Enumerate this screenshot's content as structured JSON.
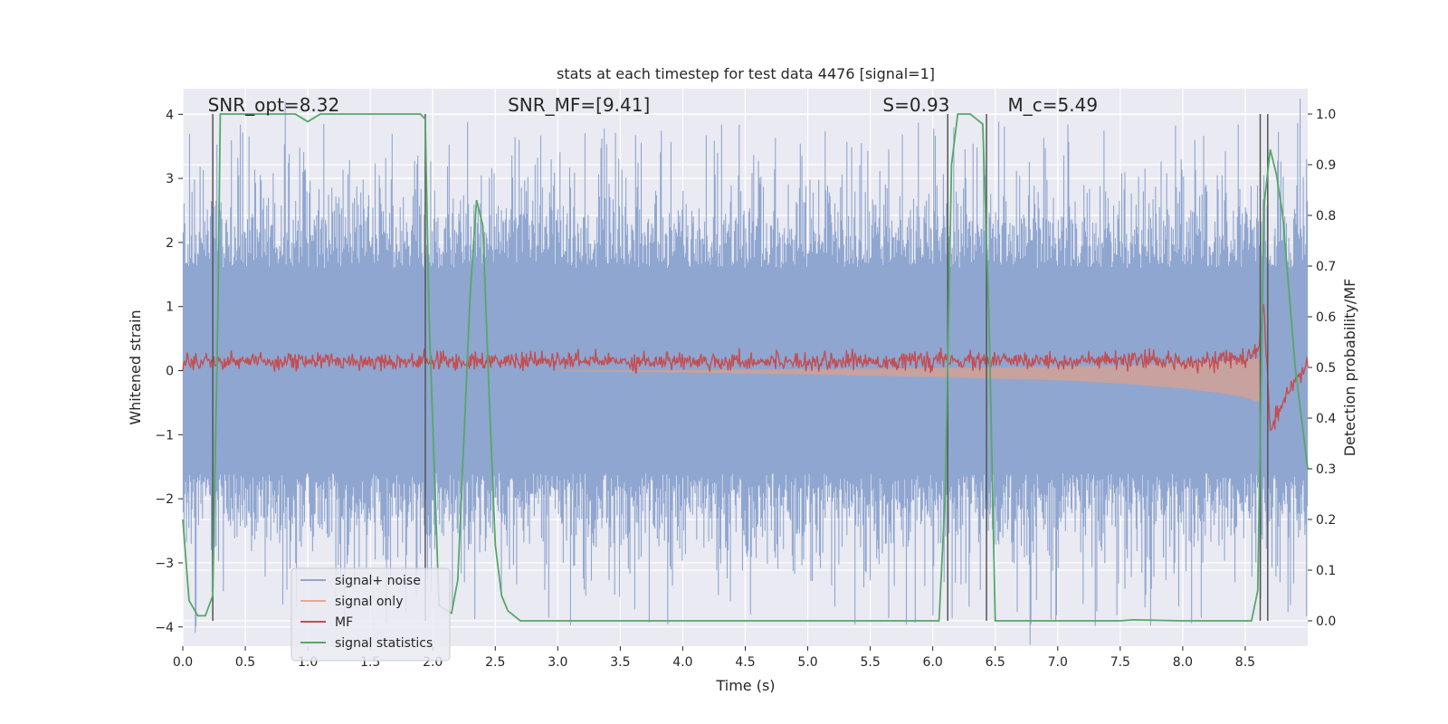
{
  "chart_data": {
    "type": "line",
    "title": "stats at each timestep for test data 4476 [signal=1]",
    "xlabel": "Time (s)",
    "ylabel_left": "Whitened strain",
    "ylabel_right": "Detection probability/MF",
    "xlim": [
      0,
      9.0
    ],
    "ylim_left": [
      -4.3,
      4.4
    ],
    "ylim_right": [
      -0.05,
      1.05
    ],
    "x_ticks": [
      0.0,
      0.5,
      1.0,
      1.5,
      2.0,
      2.5,
      3.0,
      3.5,
      4.0,
      4.5,
      5.0,
      5.5,
      6.0,
      6.5,
      7.0,
      7.5,
      8.0,
      8.5
    ],
    "x_tick_labels": [
      "0.0",
      "0.5",
      "1.0",
      "1.5",
      "2.0",
      "2.5",
      "3.0",
      "3.5",
      "4.0",
      "4.5",
      "5.0",
      "5.5",
      "6.0",
      "6.5",
      "7.0",
      "7.5",
      "8.0",
      "8.5"
    ],
    "y_left_ticks": [
      -4,
      -3,
      -2,
      -1,
      0,
      1,
      2,
      3,
      4
    ],
    "y_left_tick_labels": [
      "−4",
      "−3",
      "−2",
      "−1",
      "0",
      "1",
      "2",
      "3",
      "4"
    ],
    "y_right_ticks": [
      0.0,
      0.1,
      0.2,
      0.3,
      0.4,
      0.5,
      0.6,
      0.7,
      0.8,
      0.9,
      1.0
    ],
    "y_right_tick_labels": [
      "0.0",
      "0.1",
      "0.2",
      "0.3",
      "0.4",
      "0.5",
      "0.6",
      "0.7",
      "0.8",
      "0.9",
      "1.0"
    ],
    "annotations": [
      {
        "text": "SNR_opt=8.32",
        "x": 0.2,
        "y": 4.05
      },
      {
        "text": "SNR_MF=[9.41]",
        "x": 2.6,
        "y": 4.05
      },
      {
        "text": "S=0.93",
        "x": 5.6,
        "y": 4.05
      },
      {
        "text": "M_c=5.49",
        "x": 6.6,
        "y": 4.05
      }
    ],
    "vertical_lines": [
      0.24,
      1.94,
      6.12,
      6.43,
      8.62,
      8.68
    ],
    "legend": {
      "placement": "lower-left",
      "entries": [
        {
          "name": "signal+ noise",
          "color": "#8fa6d0"
        },
        {
          "name": "signal only",
          "color": "#eba78e"
        },
        {
          "name": "MF",
          "color": "#c44e52"
        },
        {
          "name": "signal statistics",
          "color": "#55a868"
        }
      ]
    },
    "series": [
      {
        "name": "signal statistics",
        "axis": "right",
        "color": "#55a868",
        "x": [
          0.0,
          0.05,
          0.12,
          0.18,
          0.24,
          0.28,
          0.3,
          0.34,
          0.5,
          0.9,
          1.0,
          1.1,
          1.2,
          1.5,
          1.9,
          1.94,
          1.97,
          2.05,
          2.15,
          2.2,
          2.3,
          2.35,
          2.4,
          2.45,
          2.5,
          2.55,
          2.6,
          2.7,
          5.0,
          6.05,
          6.1,
          6.15,
          6.2,
          6.3,
          6.4,
          6.45,
          6.5,
          6.6,
          7.5,
          7.6,
          8.0,
          8.55,
          8.6,
          8.65,
          8.7,
          8.75,
          8.8,
          8.9,
          9.0
        ],
        "values": [
          0.2,
          0.04,
          0.01,
          0.01,
          0.05,
          0.6,
          1.0,
          1.0,
          1.0,
          1.0,
          0.985,
          1.0,
          1.0,
          1.0,
          1.0,
          0.99,
          0.6,
          0.03,
          0.015,
          0.08,
          0.65,
          0.83,
          0.78,
          0.45,
          0.15,
          0.05,
          0.02,
          0.0,
          0.0,
          0.0,
          0.25,
          0.9,
          1.0,
          1.0,
          0.98,
          0.6,
          0.0,
          0.0,
          0.0,
          0.002,
          0.0,
          0.0,
          0.06,
          0.82,
          0.93,
          0.88,
          0.8,
          0.5,
          0.3
        ]
      },
      {
        "name": "MF",
        "axis": "left",
        "color": "#c44e52",
        "x": [
          0.0,
          1.0,
          2.0,
          3.0,
          4.0,
          5.0,
          6.0,
          7.0,
          8.0,
          8.5,
          8.6,
          8.65,
          8.7,
          9.0
        ],
        "values": [
          0.15,
          0.15,
          0.15,
          0.15,
          0.15,
          0.15,
          0.15,
          0.15,
          0.15,
          0.18,
          0.3,
          1.0,
          -0.9,
          0.15
        ]
      }
    ],
    "noise_amplitude_envelope": {
      "name": "signal+ noise",
      "axis": "left",
      "typical_max": 3.0,
      "typical_min": -3.0,
      "extreme_max": 3.9,
      "extreme_min": -4.0
    },
    "signal_envelope": {
      "name": "signal only",
      "axis": "left",
      "x": [
        3.0,
        4.0,
        5.0,
        6.0,
        7.0,
        7.5,
        8.0,
        8.3,
        8.5,
        8.62
      ],
      "amplitude": [
        0.01,
        0.03,
        0.06,
        0.1,
        0.15,
        0.2,
        0.28,
        0.35,
        0.42,
        0.5
      ]
    }
  }
}
